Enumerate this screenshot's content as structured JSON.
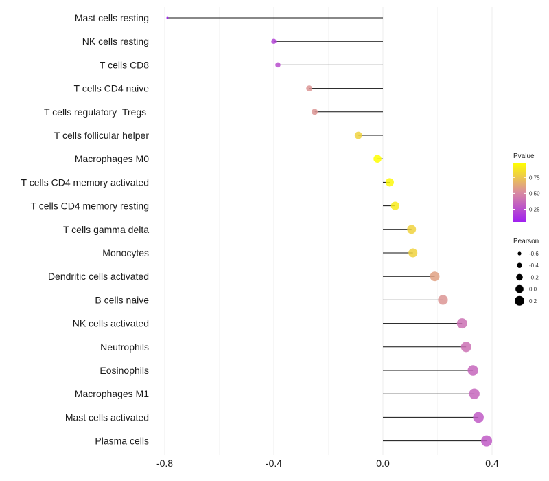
{
  "chart_data": {
    "type": "lollipop",
    "title": "",
    "xlabel": "",
    "ylabel": "",
    "xlim": [
      -0.82,
      0.4
    ],
    "x_ticks": [
      -0.8,
      -0.4,
      0.0,
      0.4
    ],
    "x_tick_labels": [
      "-0.8",
      "-0.4",
      "0.0",
      "0.4"
    ],
    "grid": true,
    "categories": [
      "Mast cells resting",
      "NK cells resting",
      "T cells CD8",
      "T cells CD4 naive",
      "T cells regulatory  Tregs ",
      "T cells follicular helper",
      "Macrophages M0",
      "T cells CD4 memory activated",
      "T cells CD4 memory resting",
      "T cells gamma delta",
      "Monocytes",
      "Dendritic cells activated",
      "B cells naive",
      "NK cells activated",
      "Neutrophils",
      "Eosinophils",
      "Macrophages M1",
      "Mast cells activated",
      "Plasma cells"
    ],
    "pearson": [
      -0.79,
      -0.4,
      -0.385,
      -0.27,
      -0.25,
      -0.09,
      -0.02,
      0.025,
      0.045,
      0.105,
      0.11,
      0.19,
      0.22,
      0.29,
      0.305,
      0.33,
      0.335,
      0.35,
      0.38
    ],
    "pvalue": [
      0.05,
      0.2,
      0.25,
      0.55,
      0.55,
      0.8,
      0.98,
      0.95,
      0.9,
      0.8,
      0.8,
      0.6,
      0.55,
      0.4,
      0.4,
      0.35,
      0.35,
      0.3,
      0.3
    ],
    "color_legend": {
      "title": "Pvalue",
      "ticks": [
        0.25,
        0.5,
        0.75
      ],
      "tick_labels": [
        "0.25",
        "0.50",
        "0.75"
      ],
      "range": [
        0.05,
        0.98
      ],
      "low_color": "#a020f0",
      "mid_color": "#d98ca0",
      "high_color": "#ffff00"
    },
    "size_legend": {
      "title": "Pearson",
      "values": [
        -0.6,
        -0.4,
        -0.2,
        0.0,
        0.2
      ],
      "labels": [
        "-0.6",
        "-0.4",
        "-0.2",
        "0.0",
        "0.2"
      ]
    },
    "legend_position": "right"
  }
}
